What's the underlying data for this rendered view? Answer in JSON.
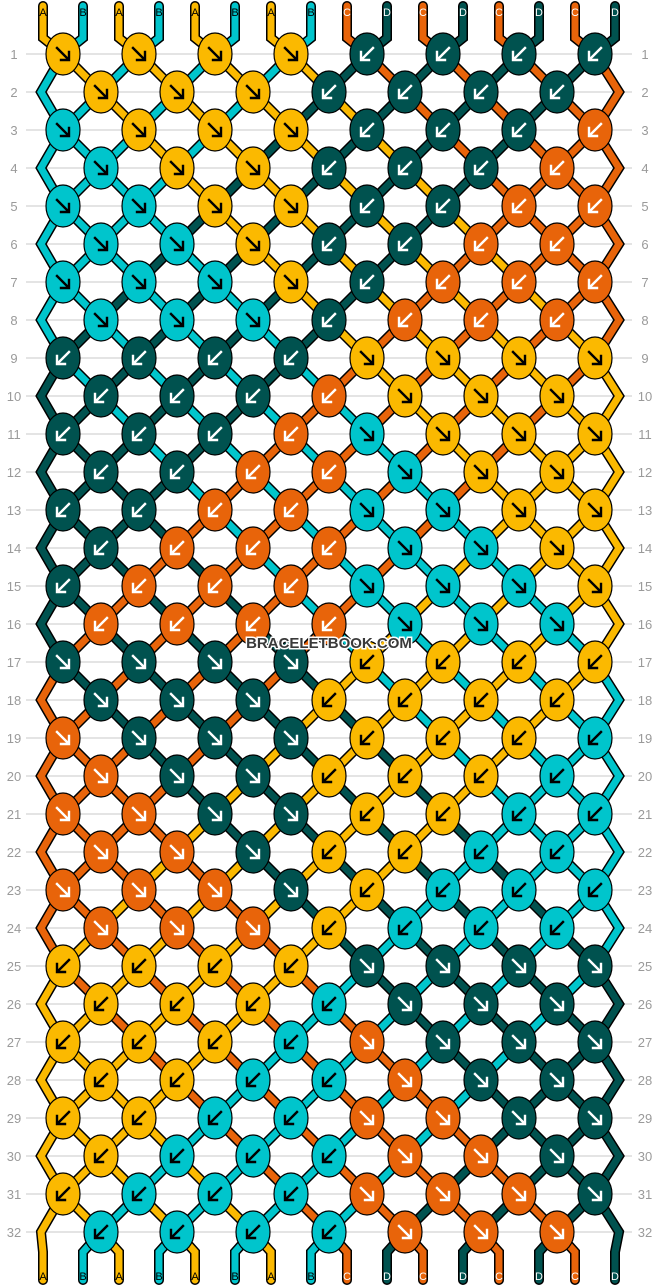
{
  "watermark": "BRACELETBOOK.COM",
  "colors": {
    "A": "#fbb900",
    "B": "#00c5cc",
    "C": "#e8640a",
    "D": "#00524f"
  },
  "label_text_colors": {
    "A": "#000000",
    "B": "#000000",
    "C": "#ffffff",
    "D": "#ffffff"
  },
  "top_strings": [
    "A",
    "B",
    "A",
    "B",
    "A",
    "B",
    "A",
    "B",
    "C",
    "D",
    "C",
    "D",
    "C",
    "D",
    "C",
    "D"
  ],
  "bottom_strings": [
    "A",
    "B",
    "A",
    "B",
    "A",
    "B",
    "A",
    "B",
    "C",
    "D",
    "C",
    "D",
    "C",
    "D",
    "C",
    "D"
  ],
  "knot_legend": {
    "f": "forward knot (arrow down-right)",
    "b": "backward knot (arrow down-left)"
  },
  "rows": [
    {
      "n": "1",
      "colors": "AAAADDDD",
      "dirs": "ffffbbbb"
    },
    {
      "n": "2",
      "colors": "AAADDDD",
      "dirs": "fffbbbb"
    },
    {
      "n": "3",
      "colors": "BAAADDDC",
      "dirs": "ffffbbbb"
    },
    {
      "n": "4",
      "colors": "BAADDDC",
      "dirs": "fffbbbb"
    },
    {
      "n": "5",
      "colors": "BBAADDCC",
      "dirs": "ffffbbbb"
    },
    {
      "n": "6",
      "colors": "BBADDCC",
      "dirs": "fffbbbb"
    },
    {
      "n": "7",
      "colors": "BBBADCCC",
      "dirs": "ffffbbbb"
    },
    {
      "n": "8",
      "colors": "BBBDCCC",
      "dirs": "fffbbbb"
    },
    {
      "n": "9",
      "colors": "DDDDAAAA",
      "dirs": "bbbbffff"
    },
    {
      "n": "10",
      "colors": "DDDCAAA",
      "dirs": "bbbbfff"
    },
    {
      "n": "11",
      "colors": "DDDCBAAA",
      "dirs": "bbbbffff"
    },
    {
      "n": "12",
      "colors": "DDCCBAA",
      "dirs": "bbbbfff"
    },
    {
      "n": "13",
      "colors": "DDCCBBAA",
      "dirs": "bbbbffff"
    },
    {
      "n": "14",
      "colors": "DCCCBBA",
      "dirs": "bbbbfff"
    },
    {
      "n": "15",
      "colors": "DCCCBBBA",
      "dirs": "bbbbffff"
    },
    {
      "n": "16",
      "colors": "CCCCBBB",
      "dirs": "bbbbfff"
    },
    {
      "n": "17",
      "colors": "DDDDAAAA",
      "dirs": "ffffbbbb"
    },
    {
      "n": "18",
      "colors": "DDDAAAA",
      "dirs": "fffbbbb"
    },
    {
      "n": "19",
      "colors": "CDDDAAAB",
      "dirs": "ffffbbbb"
    },
    {
      "n": "20",
      "colors": "CDDAAAB",
      "dirs": "fffbbbb"
    },
    {
      "n": "21",
      "colors": "CCDDAABB",
      "dirs": "ffffbbbb"
    },
    {
      "n": "22",
      "colors": "CCDAABB",
      "dirs": "fffbbbb"
    },
    {
      "n": "23",
      "colors": "CCCDABBB",
      "dirs": "ffffbbbb"
    },
    {
      "n": "24",
      "colors": "CCCABBB",
      "dirs": "fffbbbb"
    },
    {
      "n": "25",
      "colors": "AAAADDDD",
      "dirs": "bbbbffff"
    },
    {
      "n": "26",
      "colors": "AAABDDD",
      "dirs": "bbbbfff"
    },
    {
      "n": "27",
      "colors": "AAABCDDD",
      "dirs": "bbbbffff"
    },
    {
      "n": "28",
      "colors": "AABBCDD",
      "dirs": "bbbbfff"
    },
    {
      "n": "29",
      "colors": "AABBCCDD",
      "dirs": "bbbbffff"
    },
    {
      "n": "30",
      "colors": "ABBBCCD",
      "dirs": "bbbbfff"
    },
    {
      "n": "31",
      "colors": "ABBBCCCD",
      "dirs": "bbbbffff"
    },
    {
      "n": "32",
      "colors": "BBBBCCC",
      "dirs": "bbbbfff"
    }
  ]
}
